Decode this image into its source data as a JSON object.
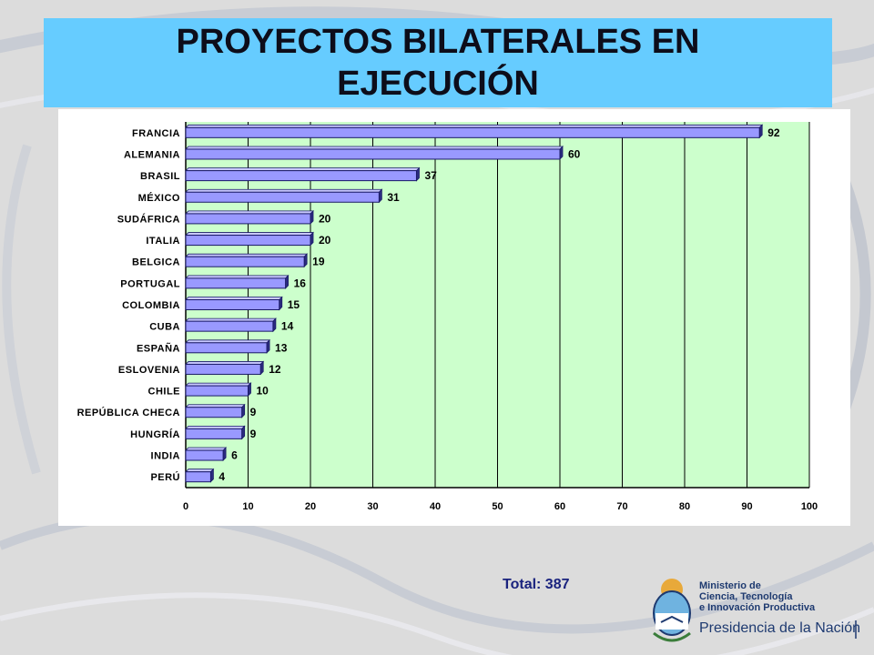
{
  "title": {
    "line1": "PROYECTOS BILATERALES EN",
    "line2": "EJECUCIÓN"
  },
  "total_label": "Total: 387",
  "logo": {
    "line1": "Ministerio de",
    "line2": "Ciencia, Tecnología",
    "line3": "e Innovación Productiva",
    "line4": "Presidencia de la Nación"
  },
  "colors": {
    "banner": "#66ccff",
    "plot_background": "#ccffcc",
    "bar_fill": "#9999ff",
    "bar_edge": "#1a1a66"
  },
  "chart_data": {
    "type": "bar",
    "orientation": "horizontal",
    "categories": [
      "FRANCIA",
      "ALEMANIA",
      "BRASIL",
      "MÉXICO",
      "SUDÁFRICA",
      "ITALIA",
      "BELGICA",
      "PORTUGAL",
      "COLOMBIA",
      "CUBA",
      "ESPAÑA",
      "ESLOVENIA",
      "CHILE",
      "REPÚBLICA CHECA",
      "HUNGRÍA",
      "INDIA",
      "PERÚ"
    ],
    "values": [
      92,
      60,
      37,
      31,
      20,
      20,
      19,
      16,
      15,
      14,
      13,
      12,
      10,
      9,
      9,
      6,
      4
    ],
    "xlim": [
      0,
      100
    ],
    "xticks": [
      0,
      10,
      20,
      30,
      40,
      50,
      60,
      70,
      80,
      90,
      100
    ],
    "grid": true,
    "data_labels": true
  }
}
